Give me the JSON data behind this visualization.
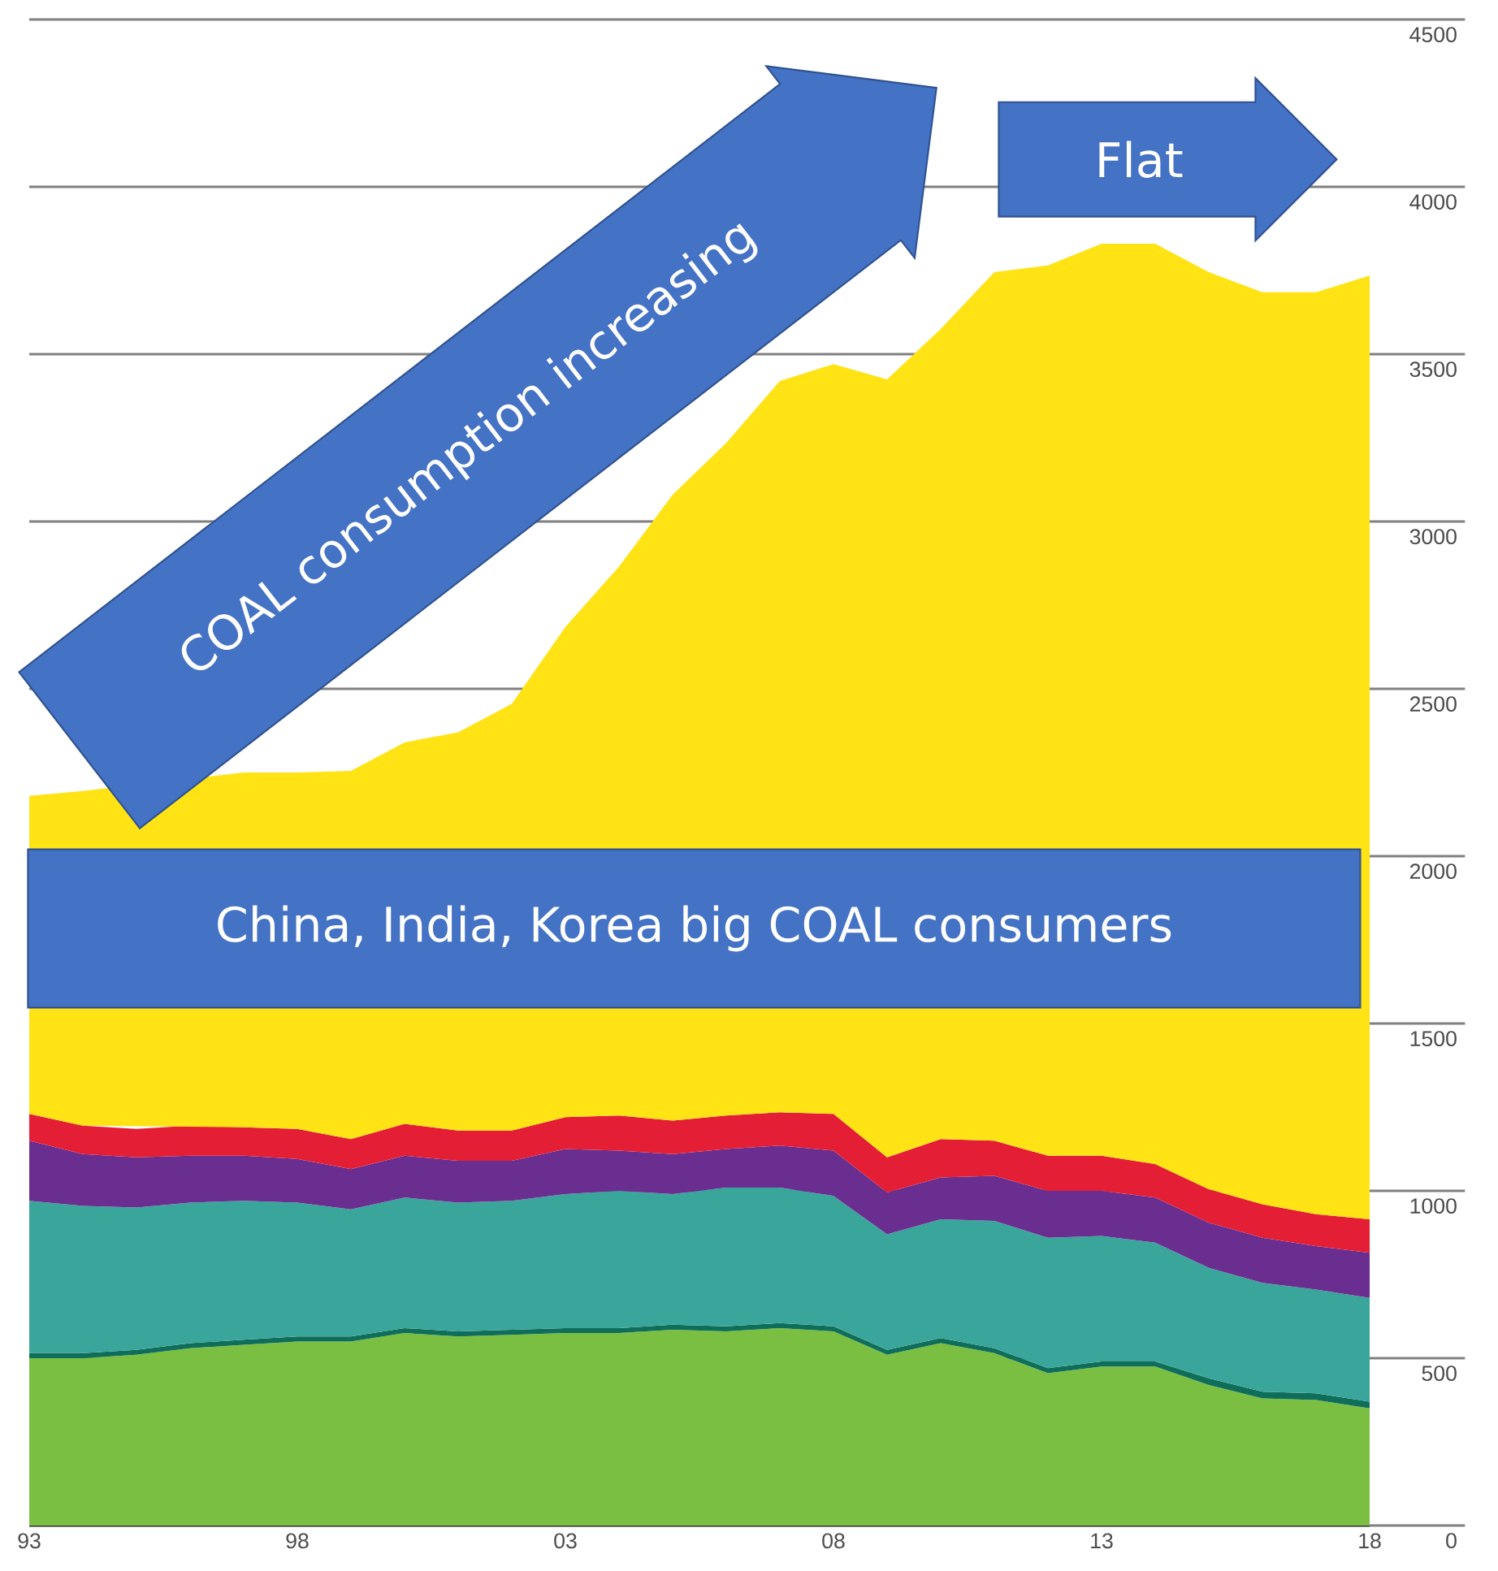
{
  "chart_data": {
    "type": "area",
    "stacked": true,
    "x": [
      1993,
      1994,
      1995,
      1996,
      1997,
      1998,
      1999,
      2000,
      2001,
      2002,
      2003,
      2004,
      2005,
      2006,
      2007,
      2008,
      2009,
      2010,
      2011,
      2012,
      2013,
      2014,
      2015,
      2016,
      2017,
      2018
    ],
    "series": [
      {
        "color": "#7bbf42",
        "values": [
          500,
          500,
          510,
          530,
          540,
          550,
          550,
          575,
          565,
          570,
          575,
          575,
          585,
          580,
          590,
          580,
          510,
          545,
          515,
          455,
          475,
          475,
          420,
          380,
          375,
          350
        ]
      },
      {
        "color": "#0f6e5a",
        "values": [
          15,
          15,
          15,
          15,
          15,
          15,
          15,
          15,
          15,
          15,
          15,
          15,
          15,
          15,
          15,
          15,
          15,
          15,
          15,
          15,
          15,
          15,
          20,
          20,
          20,
          20
        ]
      },
      {
        "color": "#3aa59a",
        "values": [
          455,
          440,
          425,
          420,
          415,
          400,
          380,
          390,
          385,
          385,
          400,
          410,
          390,
          415,
          405,
          390,
          345,
          355,
          380,
          390,
          375,
          355,
          330,
          325,
          310,
          310
        ]
      },
      {
        "color": "#6a2e90",
        "values": [
          180,
          155,
          150,
          140,
          135,
          130,
          120,
          125,
          125,
          120,
          135,
          120,
          120,
          115,
          125,
          135,
          125,
          125,
          135,
          140,
          135,
          135,
          135,
          135,
          130,
          135
        ]
      },
      {
        "color": "#e41f35",
        "values": [
          80,
          85,
          85,
          90,
          85,
          90,
          90,
          95,
          90,
          90,
          95,
          105,
          100,
          100,
          100,
          110,
          105,
          115,
          105,
          105,
          105,
          100,
          100,
          100,
          95,
          100
        ]
      },
      {
        "color": "#ffe314",
        "values": [
          950,
          1000,
          null,
          null,
          1060,
          1065,
          1100,
          1140,
          1190,
          1275,
          1465,
          1640,
          1870,
          2010,
          2185,
          2240,
          2325,
          2420,
          2595,
          2660,
          2725,
          2750,
          2740,
          2725,
          2755,
          2820
        ]
      }
    ],
    "xlim": [
      1993,
      2018
    ],
    "ylim": [
      0,
      4500
    ],
    "xticks": [
      {
        "value": 1993,
        "label": "93"
      },
      {
        "value": 1998,
        "label": "98"
      },
      {
        "value": 2003,
        "label": "03"
      },
      {
        "value": 2008,
        "label": "08"
      },
      {
        "value": 2013,
        "label": "13"
      },
      {
        "value": 2018,
        "label": "18"
      }
    ],
    "yticks": [
      0,
      500,
      1000,
      1500,
      2000,
      2500,
      3000,
      3500,
      4000,
      4500
    ],
    "grid": "y",
    "annotations": [
      "COAL consumption increasing",
      "Flat",
      "China, India, Korea big COAL consumers"
    ]
  }
}
